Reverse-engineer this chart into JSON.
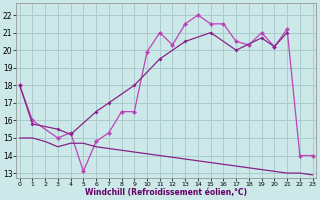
{
  "background_color": "#cce8e8",
  "grid_color": "#aacccc",
  "xlabel": "Windchill (Refroidissement éolien,°C)",
  "xlim": [
    -0.3,
    23.3
  ],
  "ylim": [
    12.7,
    22.7
  ],
  "yticks": [
    13,
    14,
    15,
    16,
    17,
    18,
    19,
    20,
    21,
    22
  ],
  "xticks": [
    0,
    1,
    2,
    3,
    4,
    5,
    6,
    7,
    8,
    9,
    10,
    11,
    12,
    13,
    14,
    15,
    16,
    17,
    18,
    19,
    20,
    21,
    22,
    23
  ],
  "line_zigzag_x": [
    0,
    1,
    3,
    4,
    5,
    6,
    7,
    8,
    9,
    10,
    11,
    12,
    13,
    14,
    15,
    16,
    17,
    18,
    19,
    20,
    21,
    22,
    23
  ],
  "line_zigzag_y": [
    18.0,
    16.0,
    15.0,
    15.3,
    13.1,
    14.8,
    15.3,
    16.5,
    16.5,
    19.9,
    21.0,
    20.3,
    21.5,
    22.0,
    21.5,
    21.5,
    20.5,
    20.3,
    21.0,
    20.2,
    21.2,
    14.0,
    14.0
  ],
  "line_diag_x": [
    0,
    1,
    3,
    4,
    6,
    7,
    9,
    11,
    13,
    15,
    17,
    19,
    20,
    21
  ],
  "line_diag_y": [
    18.0,
    15.8,
    15.5,
    15.2,
    16.5,
    17.0,
    18.0,
    19.5,
    20.5,
    21.0,
    20.0,
    20.7,
    20.2,
    21.0
  ],
  "line_flat_x": [
    0,
    1,
    2,
    3,
    4,
    5,
    6,
    7,
    8,
    9,
    10,
    11,
    12,
    13,
    14,
    15,
    16,
    17,
    18,
    19,
    20,
    21,
    22,
    23
  ],
  "line_flat_y": [
    15.0,
    15.0,
    14.8,
    14.5,
    14.7,
    14.7,
    14.5,
    14.4,
    14.3,
    14.2,
    14.1,
    14.0,
    13.9,
    13.8,
    13.7,
    13.6,
    13.5,
    13.4,
    13.3,
    13.2,
    13.1,
    13.0,
    13.0,
    12.9
  ],
  "color_zigzag": "#bb44bb",
  "color_diag": "#882288",
  "color_flat": "#882288"
}
